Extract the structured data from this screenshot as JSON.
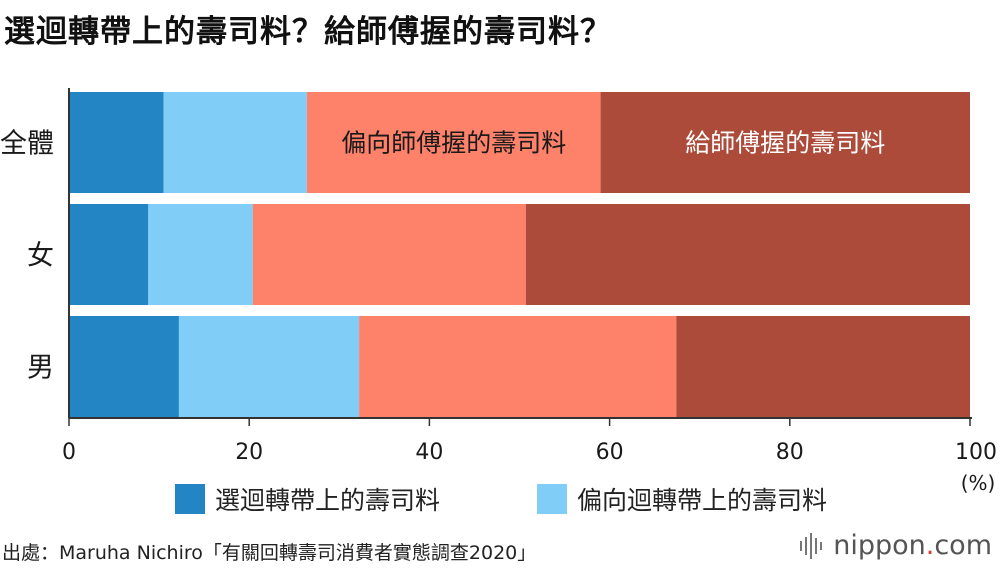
{
  "title": "選迴轉帶上的壽司料？給師傅握的壽司料？",
  "chart_data": {
    "type": "bar",
    "orientation": "horizontal",
    "stacked": true,
    "categories": [
      "全體",
      "女",
      "男"
    ],
    "series": [
      {
        "name": "選迴轉帶上的壽司料",
        "color": "#2385c4",
        "values": [
          10.5,
          8.8,
          12.2
        ]
      },
      {
        "name": "偏向迴轉帶上的壽司料",
        "color": "#80cdf7",
        "values": [
          15.9,
          11.6,
          20.0
        ]
      },
      {
        "name": "偏向師傅握的壽司料",
        "color": "#fe816a",
        "values": [
          32.6,
          30.3,
          35.2
        ]
      },
      {
        "name": "給師傅握的壽司料",
        "color": "#ac4b39",
        "values": [
          41.0,
          49.3,
          32.6
        ]
      }
    ],
    "annotations": [
      {
        "series": 2,
        "category": 0,
        "text": "偏向師傅握的壽司料",
        "color": "#1a1a1a"
      },
      {
        "series": 3,
        "category": 0,
        "text": "給師傅握的壽司料",
        "color": "#ffffff"
      }
    ],
    "xlim": [
      0,
      100
    ],
    "xticks": [
      0,
      20,
      40,
      60,
      80,
      100
    ],
    "xunit": "(%)",
    "grid": false,
    "legend_position": "bottom"
  },
  "legend": {
    "items": [
      {
        "label": "選迴轉帶上的壽司料",
        "color": "#2385c4"
      },
      {
        "label": "偏向迴轉帶上的壽司料",
        "color": "#80cdf7"
      }
    ]
  },
  "source": "出處：Maruha Nichiro「有關回轉壽司消費者實態調查2020」",
  "brand": {
    "name": "nippon",
    "dot": ".",
    "tld": "com"
  }
}
